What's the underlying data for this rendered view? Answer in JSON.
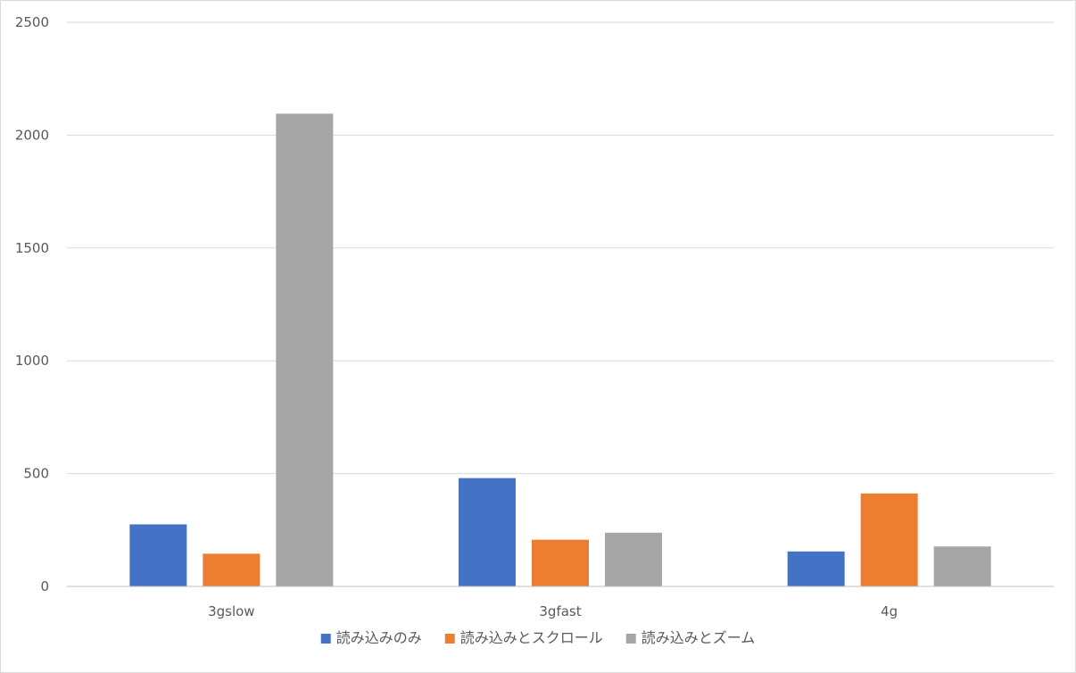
{
  "chart_data": {
    "type": "bar",
    "title": "",
    "xlabel": "",
    "ylabel": "",
    "categories": [
      "3gslow",
      "3gfast",
      "4g"
    ],
    "series": [
      {
        "name": "読み込みのみ",
        "color": "#4472c4",
        "values": [
          275,
          480,
          155
        ]
      },
      {
        "name": "読み込みとスクロール",
        "color": "#ed7d31",
        "values": [
          145,
          207,
          412
        ]
      },
      {
        "name": "読み込みとズーム",
        "color": "#a5a5a5",
        "values": [
          2095,
          238,
          177
        ]
      }
    ],
    "ylim": [
      0,
      2500
    ],
    "yticks": [
      0,
      500,
      1000,
      1500,
      2000,
      2500
    ],
    "grid": true,
    "legend": "bottom"
  }
}
